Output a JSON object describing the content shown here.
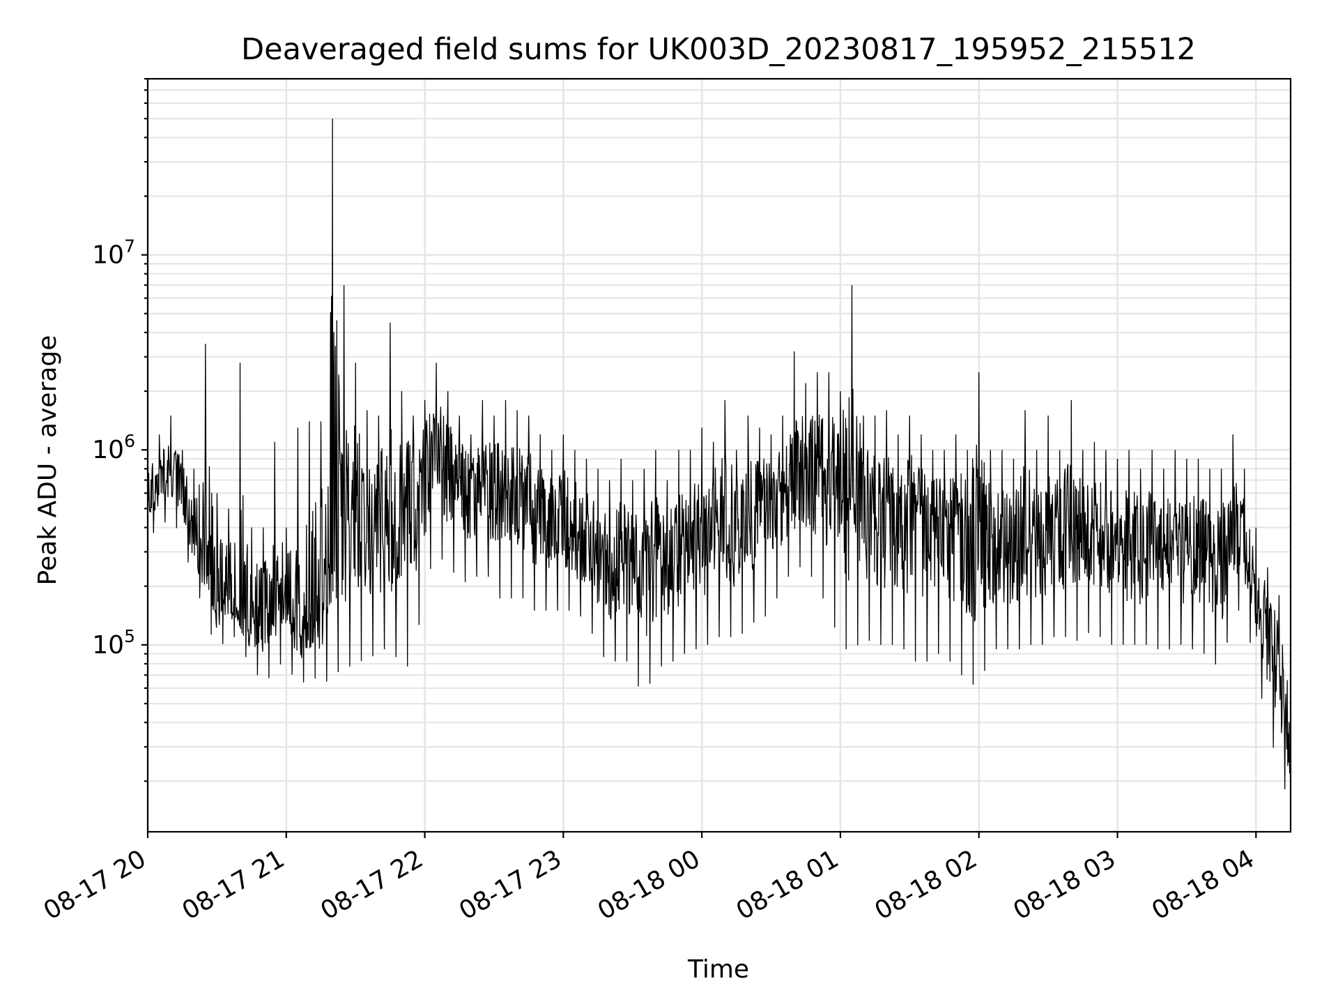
{
  "chart_data": {
    "type": "line",
    "title": "Deaveraged field sums for UK003D_20230817_195952_215512",
    "xlabel": "Time",
    "ylabel": "Peak ADU - average",
    "yscale": "log",
    "ylim": [
      11000,
      80000000
    ],
    "xlim": [
      "2023-08-17 20:00",
      "2023-08-18 04:15"
    ],
    "grid": true,
    "x_ticks": [
      "08-17 20",
      "08-17 21",
      "08-17 22",
      "08-17 23",
      "08-18 00",
      "08-18 01",
      "08-18 02",
      "08-18 03",
      "08-18 04"
    ],
    "y_ticks": [
      {
        "value": 100000,
        "base": "10",
        "exp": "5"
      },
      {
        "value": 1000000,
        "base": "10",
        "exp": "6"
      },
      {
        "value": 10000000,
        "base": "10",
        "exp": "7"
      }
    ],
    "series_color": "#000000",
    "series": [
      {
        "x": [
          "2023-08-17 20:00",
          "2023-08-17 20:05",
          "2023-08-17 20:10",
          "2023-08-17 20:15",
          "2023-08-17 20:20",
          "2023-08-17 20:25",
          "2023-08-17 20:30",
          "2023-08-17 20:35",
          "2023-08-17 20:40",
          "2023-08-17 20:45",
          "2023-08-17 20:50",
          "2023-08-17 20:55",
          "2023-08-17 21:00",
          "2023-08-17 21:05",
          "2023-08-17 21:10",
          "2023-08-17 21:15",
          "2023-08-17 21:20",
          "2023-08-17 21:25",
          "2023-08-17 21:30",
          "2023-08-17 21:35",
          "2023-08-17 21:40",
          "2023-08-17 21:45",
          "2023-08-17 21:50",
          "2023-08-17 21:55",
          "2023-08-17 22:00",
          "2023-08-17 22:05",
          "2023-08-17 22:10",
          "2023-08-17 22:15",
          "2023-08-17 22:20",
          "2023-08-17 22:25",
          "2023-08-17 22:30",
          "2023-08-17 22:35",
          "2023-08-17 22:40",
          "2023-08-17 22:45",
          "2023-08-17 22:50",
          "2023-08-17 22:55",
          "2023-08-17 23:00",
          "2023-08-17 23:05",
          "2023-08-17 23:10",
          "2023-08-17 23:15",
          "2023-08-17 23:20",
          "2023-08-17 23:25",
          "2023-08-17 23:30",
          "2023-08-17 23:35",
          "2023-08-17 23:40",
          "2023-08-17 23:45",
          "2023-08-17 23:50",
          "2023-08-17 23:55",
          "2023-08-18 00:00",
          "2023-08-18 00:05",
          "2023-08-18 00:10",
          "2023-08-18 00:15",
          "2023-08-18 00:20",
          "2023-08-18 00:25",
          "2023-08-18 00:30",
          "2023-08-18 00:35",
          "2023-08-18 00:40",
          "2023-08-18 00:45",
          "2023-08-18 00:50",
          "2023-08-18 00:55",
          "2023-08-18 01:00",
          "2023-08-18 01:05",
          "2023-08-18 01:10",
          "2023-08-18 01:15",
          "2023-08-18 01:20",
          "2023-08-18 01:25",
          "2023-08-18 01:30",
          "2023-08-18 01:35",
          "2023-08-18 01:40",
          "2023-08-18 01:45",
          "2023-08-18 01:50",
          "2023-08-18 01:55",
          "2023-08-18 02:00",
          "2023-08-18 02:05",
          "2023-08-18 02:10",
          "2023-08-18 02:15",
          "2023-08-18 02:20",
          "2023-08-18 02:25",
          "2023-08-18 02:30",
          "2023-08-18 02:35",
          "2023-08-18 02:40",
          "2023-08-18 02:45",
          "2023-08-18 02:50",
          "2023-08-18 02:55",
          "2023-08-18 03:00",
          "2023-08-18 03:05",
          "2023-08-18 03:10",
          "2023-08-18 03:15",
          "2023-08-18 03:20",
          "2023-08-18 03:25",
          "2023-08-18 03:30",
          "2023-08-18 03:35",
          "2023-08-18 03:40",
          "2023-08-18 03:45",
          "2023-08-18 03:50",
          "2023-08-18 03:55",
          "2023-08-18 04:00",
          "2023-08-18 04:05",
          "2023-08-18 04:10",
          "2023-08-18 04:15"
        ],
        "y": [
          600000,
          700000,
          800000,
          700000,
          400000,
          250000,
          200000,
          180000,
          150000,
          130000,
          150000,
          180000,
          200000,
          150000,
          120000,
          150000,
          600000,
          400000,
          500000,
          500000,
          450000,
          450000,
          500000,
          700000,
          900000,
          1000000,
          900000,
          800000,
          700000,
          700000,
          650000,
          600000,
          650000,
          600000,
          550000,
          500000,
          450000,
          400000,
          350000,
          300000,
          300000,
          300000,
          280000,
          300000,
          300000,
          300000,
          350000,
          350000,
          400000,
          450000,
          500000,
          450000,
          500000,
          550000,
          550000,
          600000,
          700000,
          800000,
          850000,
          900000,
          800000,
          700000,
          600000,
          550000,
          500000,
          450000,
          500000,
          500000,
          450000,
          450000,
          450000,
          450000,
          400000,
          350000,
          350000,
          350000,
          350000,
          400000,
          400000,
          400000,
          400000,
          380000,
          400000,
          380000,
          350000,
          350000,
          330000,
          330000,
          320000,
          320000,
          330000,
          330000,
          320000,
          320000,
          350000,
          350000,
          200000,
          130000,
          80000,
          30000
        ],
        "y_hi": [
          1000000,
          1200000,
          1500000,
          1000000,
          800000,
          3500000,
          600000,
          500000,
          2800000,
          400000,
          400000,
          1100000,
          400000,
          1300000,
          1400000,
          1400000,
          50000000,
          7000000,
          2800000,
          1600000,
          1500000,
          4500000,
          2000000,
          1500000,
          1800000,
          2800000,
          2000000,
          1500000,
          1200000,
          1800000,
          1500000,
          1800000,
          1600000,
          1500000,
          1200000,
          1000000,
          1200000,
          1000000,
          900000,
          800000,
          700000,
          900000,
          700000,
          800000,
          1000000,
          700000,
          1000000,
          1000000,
          1300000,
          1100000,
          1800000,
          1000000,
          1500000,
          1300000,
          1200000,
          1500000,
          3200000,
          2200000,
          2500000,
          2500000,
          2000000,
          7000000,
          1500000,
          1500000,
          1600000,
          1200000,
          1500000,
          1200000,
          1000000,
          1000000,
          1200000,
          1000000,
          2500000,
          1000000,
          1000000,
          900000,
          1600000,
          1000000,
          1500000,
          1000000,
          1800000,
          1000000,
          1100000,
          1000000,
          900000,
          1000000,
          800000,
          1000000,
          800000,
          1000000,
          900000,
          900000,
          800000,
          800000,
          1200000,
          800000,
          400000,
          250000,
          180000,
          80000
        ],
        "y_lo": [
          350000,
          400000,
          450000,
          350000,
          200000,
          150000,
          85000,
          120000,
          100000,
          75000,
          65000,
          70000,
          90000,
          55000,
          75000,
          60000,
          70000,
          75000,
          80000,
          85000,
          90000,
          100000,
          75000,
          80000,
          200000,
          300000,
          250000,
          220000,
          200000,
          250000,
          200000,
          150000,
          200000,
          150000,
          150000,
          150000,
          150000,
          150000,
          130000,
          100000,
          75000,
          90000,
          75000,
          50000,
          80000,
          75000,
          90000,
          90000,
          100000,
          100000,
          120000,
          100000,
          130000,
          130000,
          150000,
          200000,
          250000,
          250000,
          200000,
          150000,
          100000,
          90000,
          110000,
          100000,
          100000,
          100000,
          90000,
          75000,
          90000,
          90000,
          75000,
          65000,
          60000,
          90000,
          100000,
          90000,
          100000,
          100000,
          100000,
          120000,
          100000,
          110000,
          120000,
          100000,
          100000,
          100000,
          100000,
          100000,
          90000,
          100000,
          100000,
          90000,
          90000,
          70000,
          150000,
          150000,
          70000,
          40000,
          22000,
          15000
        ]
      }
    ]
  }
}
